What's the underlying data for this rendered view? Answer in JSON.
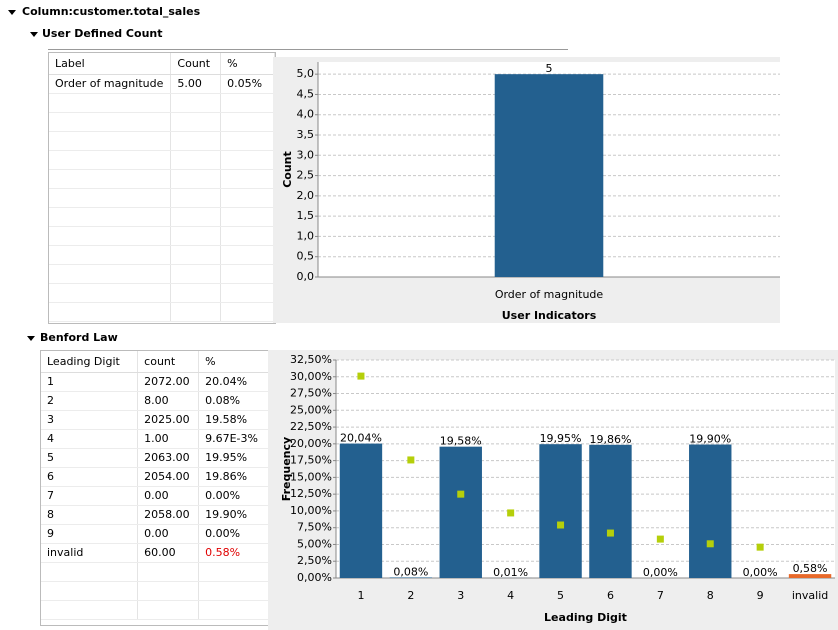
{
  "header": {
    "title": "Column:customer.total_sales"
  },
  "user_defined_count": {
    "title": "User Defined Count",
    "table": {
      "columns": [
        "Label",
        "Count",
        "%"
      ],
      "rows": [
        [
          "Order of magnitude",
          "5.00",
          "0.05%"
        ]
      ]
    }
  },
  "benford_law": {
    "title": "Benford Law",
    "table": {
      "columns": [
        "Leading Digit",
        "count",
        "%"
      ],
      "rows": [
        [
          "1",
          "2072.00",
          "20.04%"
        ],
        [
          "2",
          "8.00",
          "0.08%"
        ],
        [
          "3",
          "2025.00",
          "19.58%"
        ],
        [
          "4",
          "1.00",
          "9.67E-3%"
        ],
        [
          "5",
          "2063.00",
          "19.95%"
        ],
        [
          "6",
          "2054.00",
          "19.86%"
        ],
        [
          "7",
          "0.00",
          "0.00%"
        ],
        [
          "8",
          "2058.00",
          "19.90%"
        ],
        [
          "9",
          "0.00",
          "0.00%"
        ],
        [
          "invalid",
          "60.00",
          "0.58%"
        ]
      ]
    }
  },
  "chart_data": [
    {
      "type": "bar",
      "xlabel": "User Indicators",
      "ylabel": "Count",
      "categories": [
        "Order of magnitude"
      ],
      "values": [
        5
      ],
      "color": "#23608f",
      "ylim": [
        0,
        5.3
      ],
      "yticks": [
        {
          "value": 0,
          "label": "0,0"
        },
        {
          "value": 0.5,
          "label": "0,5"
        },
        {
          "value": 1,
          "label": "1,0"
        },
        {
          "value": 1.5,
          "label": "1,5"
        },
        {
          "value": 2,
          "label": "2,0"
        },
        {
          "value": 2.5,
          "label": "2,5"
        },
        {
          "value": 3,
          "label": "3,0"
        },
        {
          "value": 3.5,
          "label": "3,5"
        },
        {
          "value": 4,
          "label": "4,0"
        },
        {
          "value": 4.5,
          "label": "4,5"
        },
        {
          "value": 5,
          "label": "5,0"
        }
      ],
      "grid": true
    },
    {
      "type": "bar",
      "xlabel": "Leading Digit",
      "ylabel": "Frequency",
      "categories": [
        "1",
        "2",
        "3",
        "4",
        "5",
        "6",
        "7",
        "8",
        "9",
        "invalid"
      ],
      "series": [
        {
          "colors": [
            "#23608f",
            "#23608f",
            "#23608f",
            "#23608f",
            "#23608f",
            "#23608f",
            "#23608f",
            "#23608f",
            "#23608f",
            "#e8692a"
          ],
          "values": [
            20.04,
            0.08,
            19.58,
            0.01,
            19.95,
            19.86,
            0,
            19.9,
            0,
            0.58
          ],
          "value_labels": [
            "20,04%",
            "0,08%",
            "19,58%",
            "0,01%",
            "19,95%",
            "19,86%",
            "0,00%",
            "19,90%",
            "0,00%",
            "0,58%"
          ]
        },
        {
          "marker": "square",
          "color": "#b5cf0a",
          "values": [
            30.1,
            17.6,
            12.5,
            9.7,
            7.9,
            6.7,
            5.8,
            5.1,
            4.6,
            null
          ]
        }
      ],
      "ylim": [
        0,
        32.5
      ],
      "yticks": [
        {
          "value": 0,
          "label": "0,00%"
        },
        {
          "value": 2.5,
          "label": "2,50%"
        },
        {
          "value": 5,
          "label": "5,00%"
        },
        {
          "value": 7.5,
          "label": "7,50%"
        },
        {
          "value": 10,
          "label": "10,00%"
        },
        {
          "value": 12.5,
          "label": "12,50%"
        },
        {
          "value": 15,
          "label": "15,00%"
        },
        {
          "value": 17.5,
          "label": "17,50%"
        },
        {
          "value": 20,
          "label": "20,00%"
        },
        {
          "value": 22.5,
          "label": "22,50%"
        },
        {
          "value": 25,
          "label": "25,00%"
        },
        {
          "value": 27.5,
          "label": "27,50%"
        },
        {
          "value": 30,
          "label": "30,00%"
        },
        {
          "value": 32.5,
          "label": "32,50%"
        }
      ],
      "grid": true
    }
  ]
}
